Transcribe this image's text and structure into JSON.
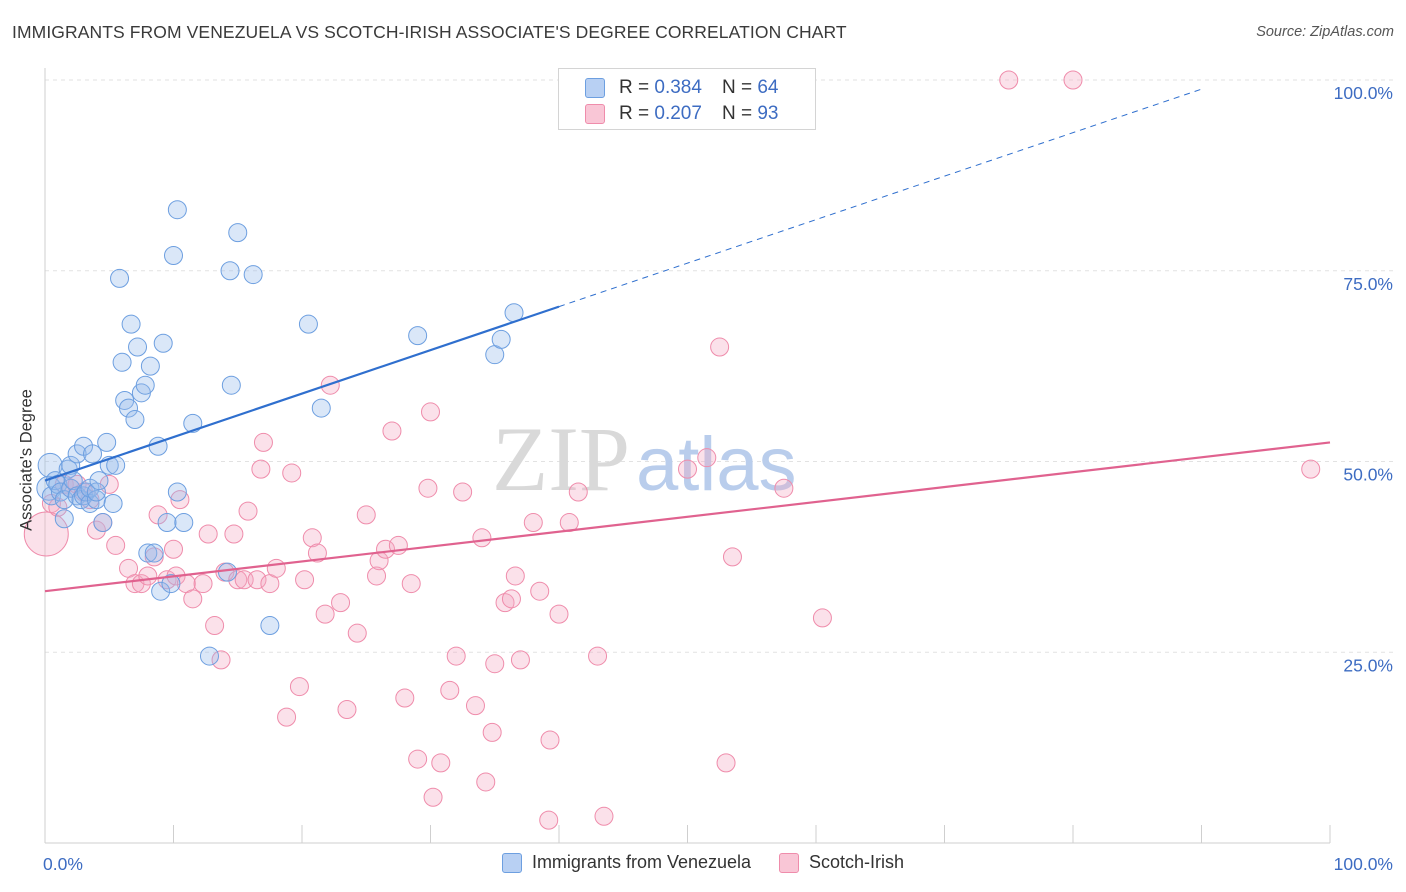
{
  "title": "IMMIGRANTS FROM VENEZUELA VS SCOTCH-IRISH ASSOCIATE'S DEGREE CORRELATION CHART",
  "source": "Source: ZipAtlas.com",
  "watermark": {
    "zip": "ZIP",
    "atlas": "atlas"
  },
  "colors": {
    "blue": "#6d9fe0",
    "blue_line": "#2f6fce",
    "pink": "#ef8cab",
    "pink_line": "#e0628f",
    "axis_text": "#3d6cc2"
  },
  "legend": {
    "r_label": "R =",
    "n_label": "N =",
    "rows": [
      {
        "r": "0.384",
        "n": "64"
      },
      {
        "r": "0.207",
        "n": "93"
      }
    ]
  },
  "chart_data": {
    "type": "scatter",
    "title": "IMMIGRANTS FROM VENEZUELA VS SCOTCH-IRISH ASSOCIATE'S DEGREE CORRELATION CHART",
    "xlabel": "",
    "ylabel": "Associate's Degree",
    "xlim": [
      0,
      100
    ],
    "ylim": [
      0,
      100
    ],
    "x_tick_labels": [
      "0.0%",
      "100.0%"
    ],
    "y_tick_labels": [
      "25.0%",
      "50.0%",
      "75.0%",
      "100.0%"
    ],
    "y_ticks": [
      25,
      50,
      75,
      100
    ],
    "grid": true,
    "legend_position": "top-center",
    "series": [
      {
        "name": "Immigrants from Venezuela",
        "r": 0.384,
        "n": 64,
        "trend": {
          "x0": 0,
          "y0": 47.5,
          "x1": 40,
          "y1": 70.3,
          "dash_to_x": 90,
          "dash_to_y": 98.8
        },
        "points": [
          [
            0.3,
            46.5
          ],
          [
            0.4,
            49.5
          ],
          [
            0.5,
            45.5
          ],
          [
            0.8,
            47.5
          ],
          [
            1.0,
            47.0
          ],
          [
            1.2,
            46.0
          ],
          [
            1.5,
            42.5
          ],
          [
            1.5,
            45.0
          ],
          [
            1.8,
            49.0
          ],
          [
            2.0,
            49.5
          ],
          [
            2.0,
            46.5
          ],
          [
            2.2,
            47.5
          ],
          [
            2.5,
            45.5
          ],
          [
            2.5,
            51.0
          ],
          [
            2.8,
            45.0
          ],
          [
            3.0,
            45.5
          ],
          [
            3.0,
            52.0
          ],
          [
            3.2,
            46.0
          ],
          [
            3.5,
            44.5
          ],
          [
            3.5,
            46.5
          ],
          [
            3.7,
            51.0
          ],
          [
            4.0,
            45.0
          ],
          [
            4.0,
            46.0
          ],
          [
            4.2,
            47.5
          ],
          [
            4.5,
            42.0
          ],
          [
            4.8,
            52.5
          ],
          [
            5.0,
            49.5
          ],
          [
            5.3,
            44.5
          ],
          [
            5.5,
            49.5
          ],
          [
            5.8,
            74.0
          ],
          [
            6.0,
            63.0
          ],
          [
            6.2,
            58.0
          ],
          [
            6.5,
            57.0
          ],
          [
            6.7,
            68.0
          ],
          [
            7.0,
            55.5
          ],
          [
            7.2,
            65.0
          ],
          [
            7.5,
            59.0
          ],
          [
            7.8,
            60.0
          ],
          [
            8.0,
            38.0
          ],
          [
            8.2,
            62.5
          ],
          [
            8.5,
            38.0
          ],
          [
            8.8,
            52.0
          ],
          [
            9.0,
            33.0
          ],
          [
            9.2,
            65.5
          ],
          [
            9.5,
            42.0
          ],
          [
            9.8,
            34.0
          ],
          [
            10.0,
            77.0
          ],
          [
            10.3,
            83.0
          ],
          [
            10.3,
            46.0
          ],
          [
            10.8,
            42.0
          ],
          [
            11.5,
            55.0
          ],
          [
            12.8,
            24.5
          ],
          [
            14.2,
            35.5
          ],
          [
            14.4,
            75.0
          ],
          [
            14.5,
            60.0
          ],
          [
            15.0,
            80.0
          ],
          [
            16.2,
            74.5
          ],
          [
            17.5,
            28.5
          ],
          [
            20.5,
            68.0
          ],
          [
            21.5,
            57.0
          ],
          [
            29.0,
            66.5
          ],
          [
            35.0,
            64.0
          ],
          [
            35.5,
            66.0
          ],
          [
            36.5,
            69.5
          ]
        ]
      },
      {
        "name": "Scotch-Irish",
        "r": 0.207,
        "n": 93,
        "trend": {
          "x0": 0,
          "y0": 33.0,
          "x1": 100,
          "y1": 52.5
        },
        "points": [
          [
            0.1,
            40.5
          ],
          [
            0.5,
            44.5
          ],
          [
            1.0,
            44.0
          ],
          [
            1.5,
            47.0
          ],
          [
            2.0,
            46.5
          ],
          [
            2.5,
            47.0
          ],
          [
            3.0,
            46.0
          ],
          [
            3.5,
            45.0
          ],
          [
            4.0,
            41.0
          ],
          [
            4.5,
            42.0
          ],
          [
            5.0,
            47.0
          ],
          [
            5.5,
            39.0
          ],
          [
            6.5,
            36.0
          ],
          [
            7.0,
            34.0
          ],
          [
            7.5,
            34.0
          ],
          [
            8.0,
            35.0
          ],
          [
            8.5,
            37.5
          ],
          [
            8.8,
            43.0
          ],
          [
            9.5,
            34.5
          ],
          [
            10.0,
            38.5
          ],
          [
            10.2,
            35.0
          ],
          [
            10.5,
            45.0
          ],
          [
            11.0,
            34.0
          ],
          [
            11.5,
            32.0
          ],
          [
            12.3,
            34.0
          ],
          [
            12.7,
            40.5
          ],
          [
            13.2,
            28.5
          ],
          [
            13.7,
            24.0
          ],
          [
            14.0,
            35.5
          ],
          [
            14.7,
            40.5
          ],
          [
            15.0,
            34.5
          ],
          [
            15.5,
            34.5
          ],
          [
            15.8,
            43.5
          ],
          [
            16.5,
            34.5
          ],
          [
            16.8,
            49.0
          ],
          [
            17.0,
            52.5
          ],
          [
            17.5,
            34.0
          ],
          [
            18.0,
            36.0
          ],
          [
            18.8,
            16.5
          ],
          [
            19.2,
            48.5
          ],
          [
            19.8,
            20.5
          ],
          [
            20.2,
            34.5
          ],
          [
            20.8,
            40.0
          ],
          [
            21.2,
            38.0
          ],
          [
            21.8,
            30.0
          ],
          [
            22.2,
            60.0
          ],
          [
            23.0,
            31.5
          ],
          [
            23.5,
            17.5
          ],
          [
            24.3,
            27.5
          ],
          [
            25.0,
            43.0
          ],
          [
            25.8,
            35.0
          ],
          [
            26.0,
            37.0
          ],
          [
            26.5,
            38.5
          ],
          [
            27.0,
            54.0
          ],
          [
            27.5,
            39.0
          ],
          [
            28.0,
            19.0
          ],
          [
            28.5,
            34.0
          ],
          [
            29.0,
            11.0
          ],
          [
            29.8,
            46.5
          ],
          [
            30.0,
            56.5
          ],
          [
            30.2,
            6.0
          ],
          [
            30.8,
            10.5
          ],
          [
            31.5,
            20.0
          ],
          [
            32.0,
            24.5
          ],
          [
            32.5,
            46.0
          ],
          [
            33.5,
            18.0
          ],
          [
            34.0,
            40.0
          ],
          [
            34.3,
            8.0
          ],
          [
            34.8,
            14.5
          ],
          [
            35.0,
            23.5
          ],
          [
            35.8,
            31.5
          ],
          [
            36.3,
            32.0
          ],
          [
            36.6,
            35.0
          ],
          [
            37.0,
            24.0
          ],
          [
            38.0,
            42.0
          ],
          [
            38.5,
            33.0
          ],
          [
            39.2,
            3.0
          ],
          [
            39.3,
            13.5
          ],
          [
            40.0,
            30.0
          ],
          [
            40.8,
            42.0
          ],
          [
            41.5,
            46.0
          ],
          [
            43.0,
            24.5
          ],
          [
            43.5,
            3.5
          ],
          [
            50.0,
            49.0
          ],
          [
            51.5,
            50.5
          ],
          [
            52.5,
            65.0
          ],
          [
            53.0,
            10.5
          ],
          [
            53.5,
            37.5
          ],
          [
            57.5,
            46.5
          ],
          [
            60.5,
            29.5
          ],
          [
            75.0,
            100.0
          ],
          [
            80.0,
            100.0
          ],
          [
            98.5,
            49.0
          ]
        ]
      }
    ]
  }
}
